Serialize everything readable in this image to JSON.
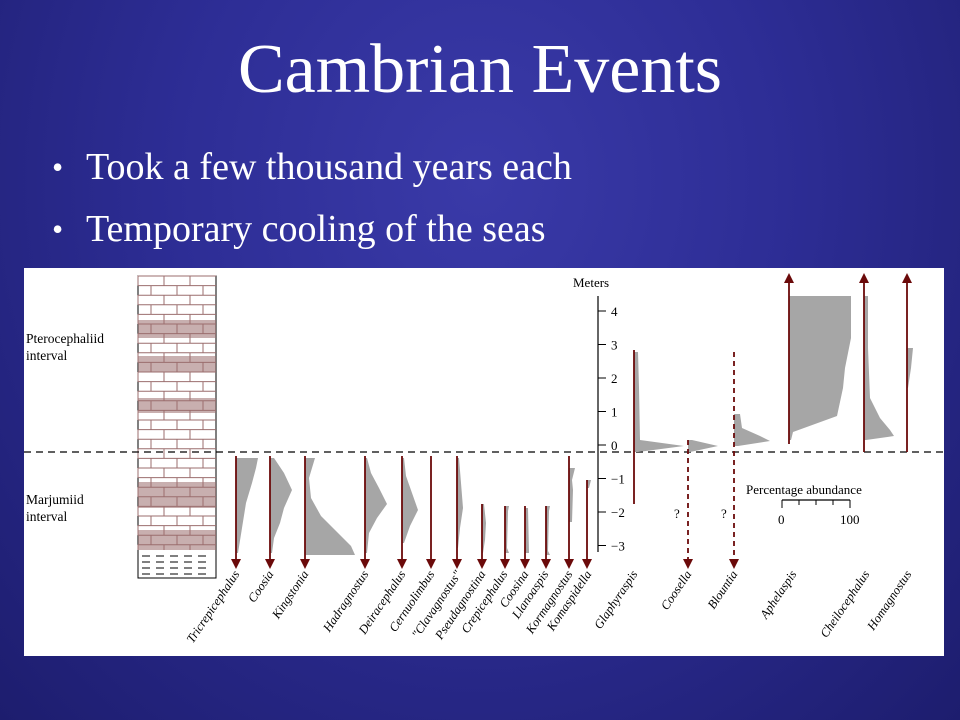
{
  "slide": {
    "title": "Cambrian Events",
    "bullets": [
      "Took a few thousand years each",
      "Temporary cooling of the seas"
    ]
  },
  "figure": {
    "interval_labels": {
      "upper": [
        "Pterocephaliid",
        "interval"
      ],
      "lower": [
        "Marjumiid",
        "interval"
      ]
    },
    "scale": {
      "label": "Meters",
      "ticks": [
        "4",
        "3",
        "2",
        "1",
        "0",
        "−1",
        "−2",
        "−3"
      ],
      "tick_values": [
        4,
        3,
        2,
        1,
        0,
        -1,
        -2,
        -3
      ]
    },
    "abundance_legend": {
      "label": "Percentage abundance",
      "min": "0",
      "max": "100"
    },
    "question_marks": [
      "?",
      "?"
    ],
    "taxa": [
      "Tricrepicephalus",
      "Coosia",
      "Kingstonia",
      "Hadragnostus",
      "Deiracephalus",
      "Cernuolimbus",
      "\"Clavagnostus\"",
      "Pseudagnostina",
      "Crepicephalus",
      "Coosina",
      "Llanoaspis",
      "Kormagnostus",
      "Komaspidella",
      "Glaphyraspis",
      "Coosella",
      "Blountia",
      "Aphelaspis",
      "Cheilocephalus",
      "Homagnostus"
    ],
    "colors": {
      "line": "#6b0a0a",
      "fill": "#a6a6a6",
      "brick": "#9b6e6e"
    }
  }
}
